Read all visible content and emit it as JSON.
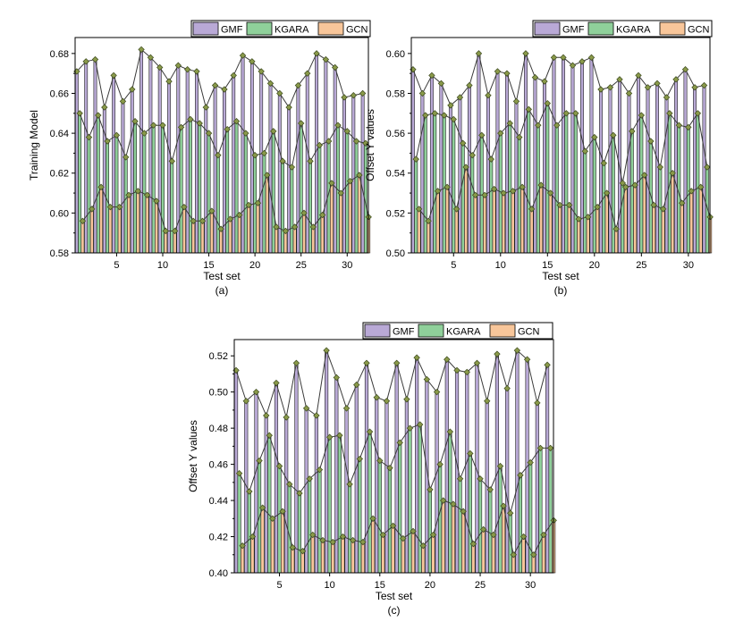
{
  "legend_labels": [
    "GMF",
    "KGARA",
    "GCN"
  ],
  "colors": {
    "gmf_fill": "#b9a9d6",
    "kgara_fill": "#8fd09a",
    "gcn_fill": "#f8c69a",
    "bar_stroke": "#222222",
    "line": "#3a3a3a",
    "marker": "#8a9a4a",
    "marker_stroke": "#3d4a1f"
  },
  "chart_data": [
    {
      "type": "bar",
      "panel_label": "(a)",
      "xlabel": "Test set",
      "ylabel": "Training Model",
      "xlim": [
        0.5,
        32.3
      ],
      "ylim": [
        0.58,
        0.688
      ],
      "yticks": [
        0.58,
        0.6,
        0.62,
        0.64,
        0.66,
        0.68
      ],
      "ytick_labels": [
        "0.58",
        "0.60",
        "0.62",
        "0.64",
        "0.66",
        "0.68"
      ],
      "xticks": [
        5,
        10,
        15,
        20,
        25,
        30
      ],
      "x": [
        1,
        2,
        3,
        4,
        5,
        6,
        7,
        8,
        9,
        10,
        11,
        12,
        13,
        14,
        15,
        16,
        17,
        18,
        19,
        20,
        21,
        22,
        23,
        24,
        25,
        26,
        27,
        28,
        29,
        30,
        31,
        32
      ],
      "series": [
        {
          "name": "GMF",
          "values": [
            0.671,
            0.676,
            0.677,
            0.653,
            0.669,
            0.656,
            0.662,
            0.682,
            0.678,
            0.673,
            0.666,
            0.674,
            0.672,
            0.671,
            0.653,
            0.664,
            0.662,
            0.669,
            0.679,
            0.676,
            0.671,
            0.665,
            0.66,
            0.653,
            0.664,
            0.67,
            0.68,
            0.677,
            0.673,
            0.658,
            0.659,
            0.66
          ]
        },
        {
          "name": "KGARA",
          "values": [
            0.65,
            0.638,
            0.649,
            0.636,
            0.639,
            0.628,
            0.646,
            0.64,
            0.644,
            0.644,
            0.626,
            0.643,
            0.647,
            0.645,
            0.64,
            0.629,
            0.642,
            0.646,
            0.64,
            0.629,
            0.63,
            0.641,
            0.626,
            0.623,
            0.645,
            0.626,
            0.634,
            0.636,
            0.644,
            0.641,
            0.636,
            0.635
          ]
        },
        {
          "name": "GCN",
          "values": [
            0.596,
            0.602,
            0.613,
            0.603,
            0.603,
            0.609,
            0.611,
            0.609,
            0.606,
            0.591,
            0.591,
            0.603,
            0.596,
            0.596,
            0.601,
            0.592,
            0.597,
            0.599,
            0.604,
            0.605,
            0.619,
            0.593,
            0.591,
            0.593,
            0.6,
            0.593,
            0.599,
            0.615,
            0.61,
            0.616,
            0.619,
            0.598
          ]
        }
      ]
    },
    {
      "type": "bar",
      "panel_label": "(b)",
      "xlabel": "Test set",
      "ylabel": "Offset Y values",
      "xlim": [
        0.5,
        32.3
      ],
      "ylim": [
        0.5,
        0.608
      ],
      "yticks": [
        0.5,
        0.52,
        0.54,
        0.56,
        0.58,
        0.6
      ],
      "ytick_labels": [
        "0.50",
        "0.52",
        "0.54",
        "0.56",
        "0.58",
        "0.60"
      ],
      "xticks": [
        5,
        10,
        15,
        20,
        25,
        30
      ],
      "x": [
        1,
        2,
        3,
        4,
        5,
        6,
        7,
        8,
        9,
        10,
        11,
        12,
        13,
        14,
        15,
        16,
        17,
        18,
        19,
        20,
        21,
        22,
        23,
        24,
        25,
        26,
        27,
        28,
        29,
        30,
        31,
        32
      ],
      "series": [
        {
          "name": "GMF",
          "values": [
            0.592,
            0.58,
            0.589,
            0.585,
            0.574,
            0.578,
            0.584,
            0.6,
            0.579,
            0.591,
            0.59,
            0.576,
            0.6,
            0.588,
            0.586,
            0.598,
            0.598,
            0.594,
            0.596,
            0.598,
            0.582,
            0.583,
            0.587,
            0.58,
            0.589,
            0.583,
            0.585,
            0.578,
            0.587,
            0.592,
            0.583,
            0.584
          ]
        },
        {
          "name": "KGARA",
          "values": [
            0.547,
            0.569,
            0.57,
            0.569,
            0.567,
            0.555,
            0.549,
            0.559,
            0.547,
            0.56,
            0.565,
            0.558,
            0.572,
            0.564,
            0.575,
            0.564,
            0.57,
            0.57,
            0.551,
            0.558,
            0.545,
            0.559,
            0.535,
            0.561,
            0.569,
            0.556,
            0.543,
            0.57,
            0.564,
            0.563,
            0.57,
            0.543
          ]
        },
        {
          "name": "GCN",
          "values": [
            0.522,
            0.516,
            0.531,
            0.533,
            0.522,
            0.543,
            0.529,
            0.529,
            0.532,
            0.53,
            0.531,
            0.533,
            0.522,
            0.534,
            0.53,
            0.524,
            0.524,
            0.517,
            0.518,
            0.523,
            0.53,
            0.512,
            0.533,
            0.534,
            0.539,
            0.524,
            0.522,
            0.54,
            0.525,
            0.531,
            0.533,
            0.518
          ]
        }
      ]
    },
    {
      "type": "bar",
      "panel_label": "(c)",
      "xlabel": "Test set",
      "ylabel": "Offset Y values",
      "xlim": [
        0.5,
        32.3
      ],
      "ylim": [
        0.4,
        0.529
      ],
      "yticks": [
        0.4,
        0.42,
        0.44,
        0.46,
        0.48,
        0.5,
        0.52
      ],
      "ytick_labels": [
        "0.40",
        "0.42",
        "0.44",
        "0.46",
        "0.48",
        "0.50",
        "0.52"
      ],
      "xticks": [
        5,
        10,
        15,
        20,
        25,
        30
      ],
      "x": [
        1,
        2,
        3,
        4,
        5,
        6,
        7,
        8,
        9,
        10,
        11,
        12,
        13,
        14,
        15,
        16,
        17,
        18,
        19,
        20,
        21,
        22,
        23,
        24,
        25,
        26,
        27,
        28,
        29,
        30,
        31,
        32
      ],
      "series": [
        {
          "name": "GMF",
          "values": [
            0.512,
            0.495,
            0.5,
            0.487,
            0.505,
            0.486,
            0.516,
            0.491,
            0.487,
            0.523,
            0.508,
            0.491,
            0.504,
            0.516,
            0.497,
            0.495,
            0.516,
            0.496,
            0.519,
            0.507,
            0.5,
            0.518,
            0.512,
            0.511,
            0.516,
            0.495,
            0.521,
            0.502,
            0.523,
            0.518,
            0.494,
            0.515
          ]
        },
        {
          "name": "KGARA",
          "values": [
            0.455,
            0.445,
            0.462,
            0.476,
            0.459,
            0.449,
            0.444,
            0.452,
            0.457,
            0.475,
            0.476,
            0.449,
            0.463,
            0.478,
            0.462,
            0.458,
            0.472,
            0.48,
            0.482,
            0.446,
            0.46,
            0.478,
            0.452,
            0.466,
            0.452,
            0.446,
            0.459,
            0.433,
            0.454,
            0.461,
            0.469,
            0.469
          ]
        },
        {
          "name": "GCN",
          "values": [
            0.415,
            0.42,
            0.436,
            0.43,
            0.434,
            0.414,
            0.412,
            0.421,
            0.418,
            0.417,
            0.42,
            0.418,
            0.417,
            0.43,
            0.421,
            0.426,
            0.419,
            0.423,
            0.415,
            0.421,
            0.44,
            0.438,
            0.434,
            0.416,
            0.424,
            0.421,
            0.437,
            0.41,
            0.42,
            0.41,
            0.421,
            0.429
          ]
        }
      ]
    }
  ]
}
